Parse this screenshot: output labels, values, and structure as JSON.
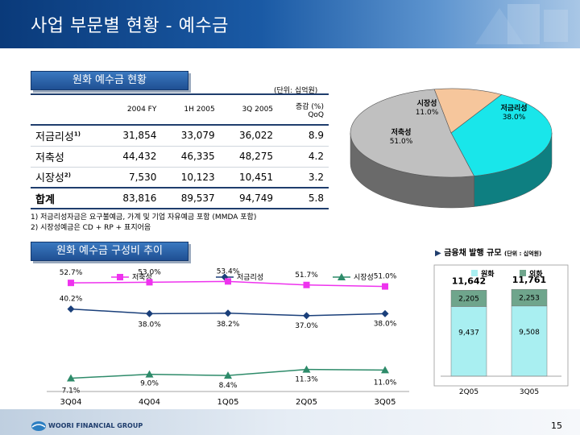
{
  "header": {
    "title": "사업 부문별 현황 - 예수금"
  },
  "section1": {
    "label": "원화 예수금 현황",
    "unit": "(단위: 십억원)"
  },
  "table": {
    "columns": [
      "",
      "2004 FY",
      "1H 2005",
      "3Q 2005",
      "증감 (%)",
      "QoQ"
    ],
    "rows": [
      {
        "label": "저금리성",
        "marker": "1)",
        "values": [
          "31,854",
          "33,079",
          "36,022",
          "8.9"
        ]
      },
      {
        "label": "저축성",
        "marker": "",
        "values": [
          "44,432",
          "46,335",
          "48,275",
          "4.2"
        ]
      },
      {
        "label": "시장성",
        "marker": "2)",
        "values": [
          "7,530",
          "10,123",
          "10,451",
          "3.2"
        ]
      },
      {
        "label": "합계",
        "marker": "",
        "values": [
          "83,816",
          "89,537",
          "94,749",
          "5.8"
        ]
      }
    ]
  },
  "notes": [
    "1) 저금리성자금은 요구불예금, 가계 및 기업 자유예금 포함 (MMDA 포함)",
    "2) 시장성예금은 CD + RP + 표지어음"
  ],
  "section2": {
    "label": "원화 예수금 구성비 추이"
  },
  "issue": {
    "title": "금융채 발행 규모",
    "unit": "(단위 : 십억원)"
  },
  "chart_data": [
    {
      "type": "pie",
      "categories": [
        "저금리성",
        "저축성",
        "시장성"
      ],
      "values": [
        38.0,
        51.0,
        11.0
      ],
      "labels": [
        "38.0%",
        "51.0%",
        "11.0%"
      ],
      "colors": [
        "#19e6ea",
        "#c0c0c0",
        "#f6c69c"
      ]
    },
    {
      "type": "line",
      "categories": [
        "3Q04",
        "4Q04",
        "1Q05",
        "2Q05",
        "3Q05"
      ],
      "series": [
        {
          "name": "저축성",
          "values": [
            52.7,
            53.0,
            53.4,
            51.7,
            51.0
          ],
          "labels": [
            "52.7%",
            "53.0%",
            "53.4%",
            "51.7%",
            "51.0%"
          ],
          "color": "#ee33ee",
          "marker": "square"
        },
        {
          "name": "저금리성",
          "values": [
            40.2,
            38.0,
            38.2,
            37.0,
            38.0
          ],
          "labels": [
            "40.2%",
            "38.0%",
            "38.2%",
            "37.0%",
            "38.0%"
          ],
          "color": "#1a3f7a",
          "marker": "diamond"
        },
        {
          "name": "시장성",
          "values": [
            7.1,
            9.0,
            8.4,
            11.3,
            11.0
          ],
          "labels": [
            "7.1%",
            "9.0%",
            "8.4%",
            "11.3%",
            "11.0%"
          ],
          "color": "#2e8b6a",
          "marker": "triangle"
        }
      ],
      "legend": "top",
      "grid": false
    },
    {
      "type": "bar",
      "stacked": true,
      "categories": [
        "2Q05",
        "3Q05"
      ],
      "series": [
        {
          "name": "원화",
          "values": [
            9437,
            9508
          ],
          "labels": [
            "9,437",
            "9,508"
          ],
          "color": "#a9eff1"
        },
        {
          "name": "외화",
          "values": [
            2205,
            2253
          ],
          "labels": [
            "2,205",
            "2,253"
          ],
          "color": "#6fa58c"
        }
      ],
      "totals": [
        "11,642",
        "11,761"
      ],
      "legend": "top"
    }
  ],
  "footer": {
    "company": "WOORI FINANCIAL GROUP",
    "page": "15"
  }
}
